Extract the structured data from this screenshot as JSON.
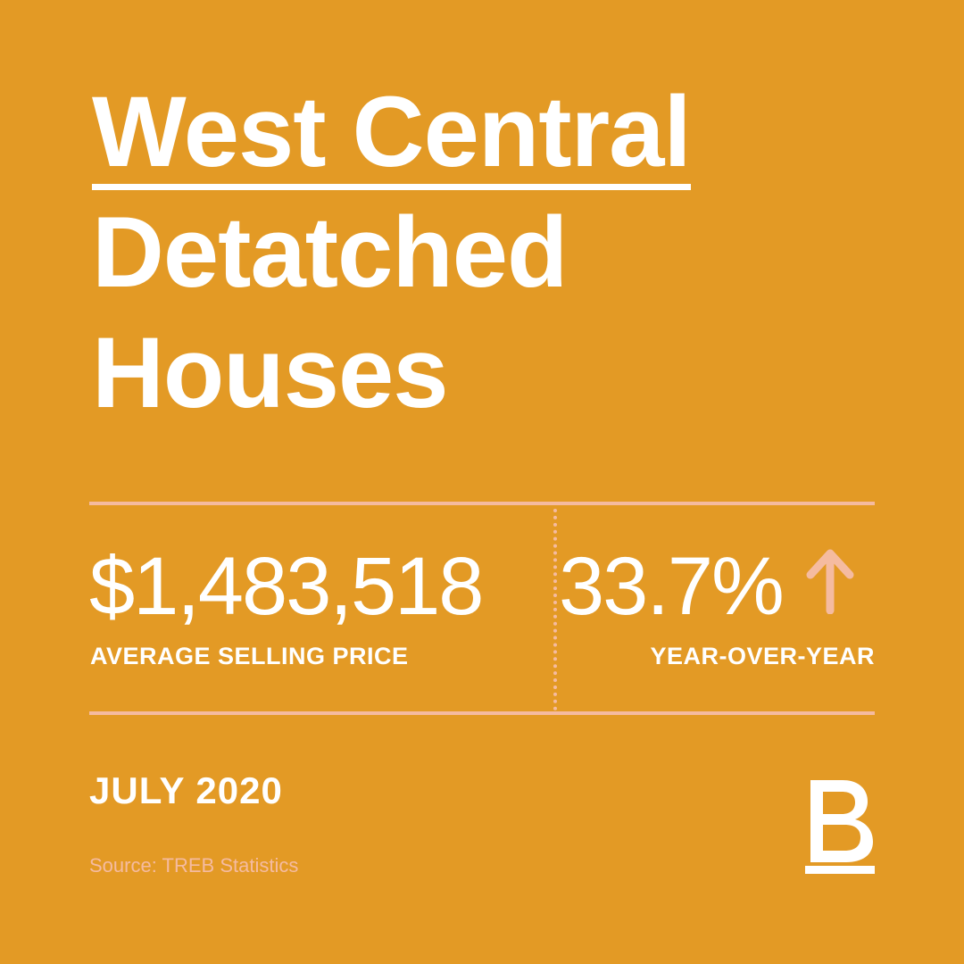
{
  "title": {
    "line1": "West Central",
    "line2": "Detatched",
    "line3": "Houses"
  },
  "stats": {
    "average_price": "$1,483,518",
    "average_price_label": "AVERAGE SELLING PRICE",
    "change": "33.7%",
    "change_direction": "up",
    "change_label": "YEAR-OVER-YEAR"
  },
  "footer": {
    "date": "JULY 2020",
    "source": "Source: TREB Statistics",
    "logo_letter": "B"
  },
  "colors": {
    "background": "#E39A25",
    "accent": "#F5BBA0",
    "text": "#FFFFFF"
  },
  "icons": {
    "change_indicator": "arrow-up-icon",
    "brand": "b-logo-icon"
  }
}
